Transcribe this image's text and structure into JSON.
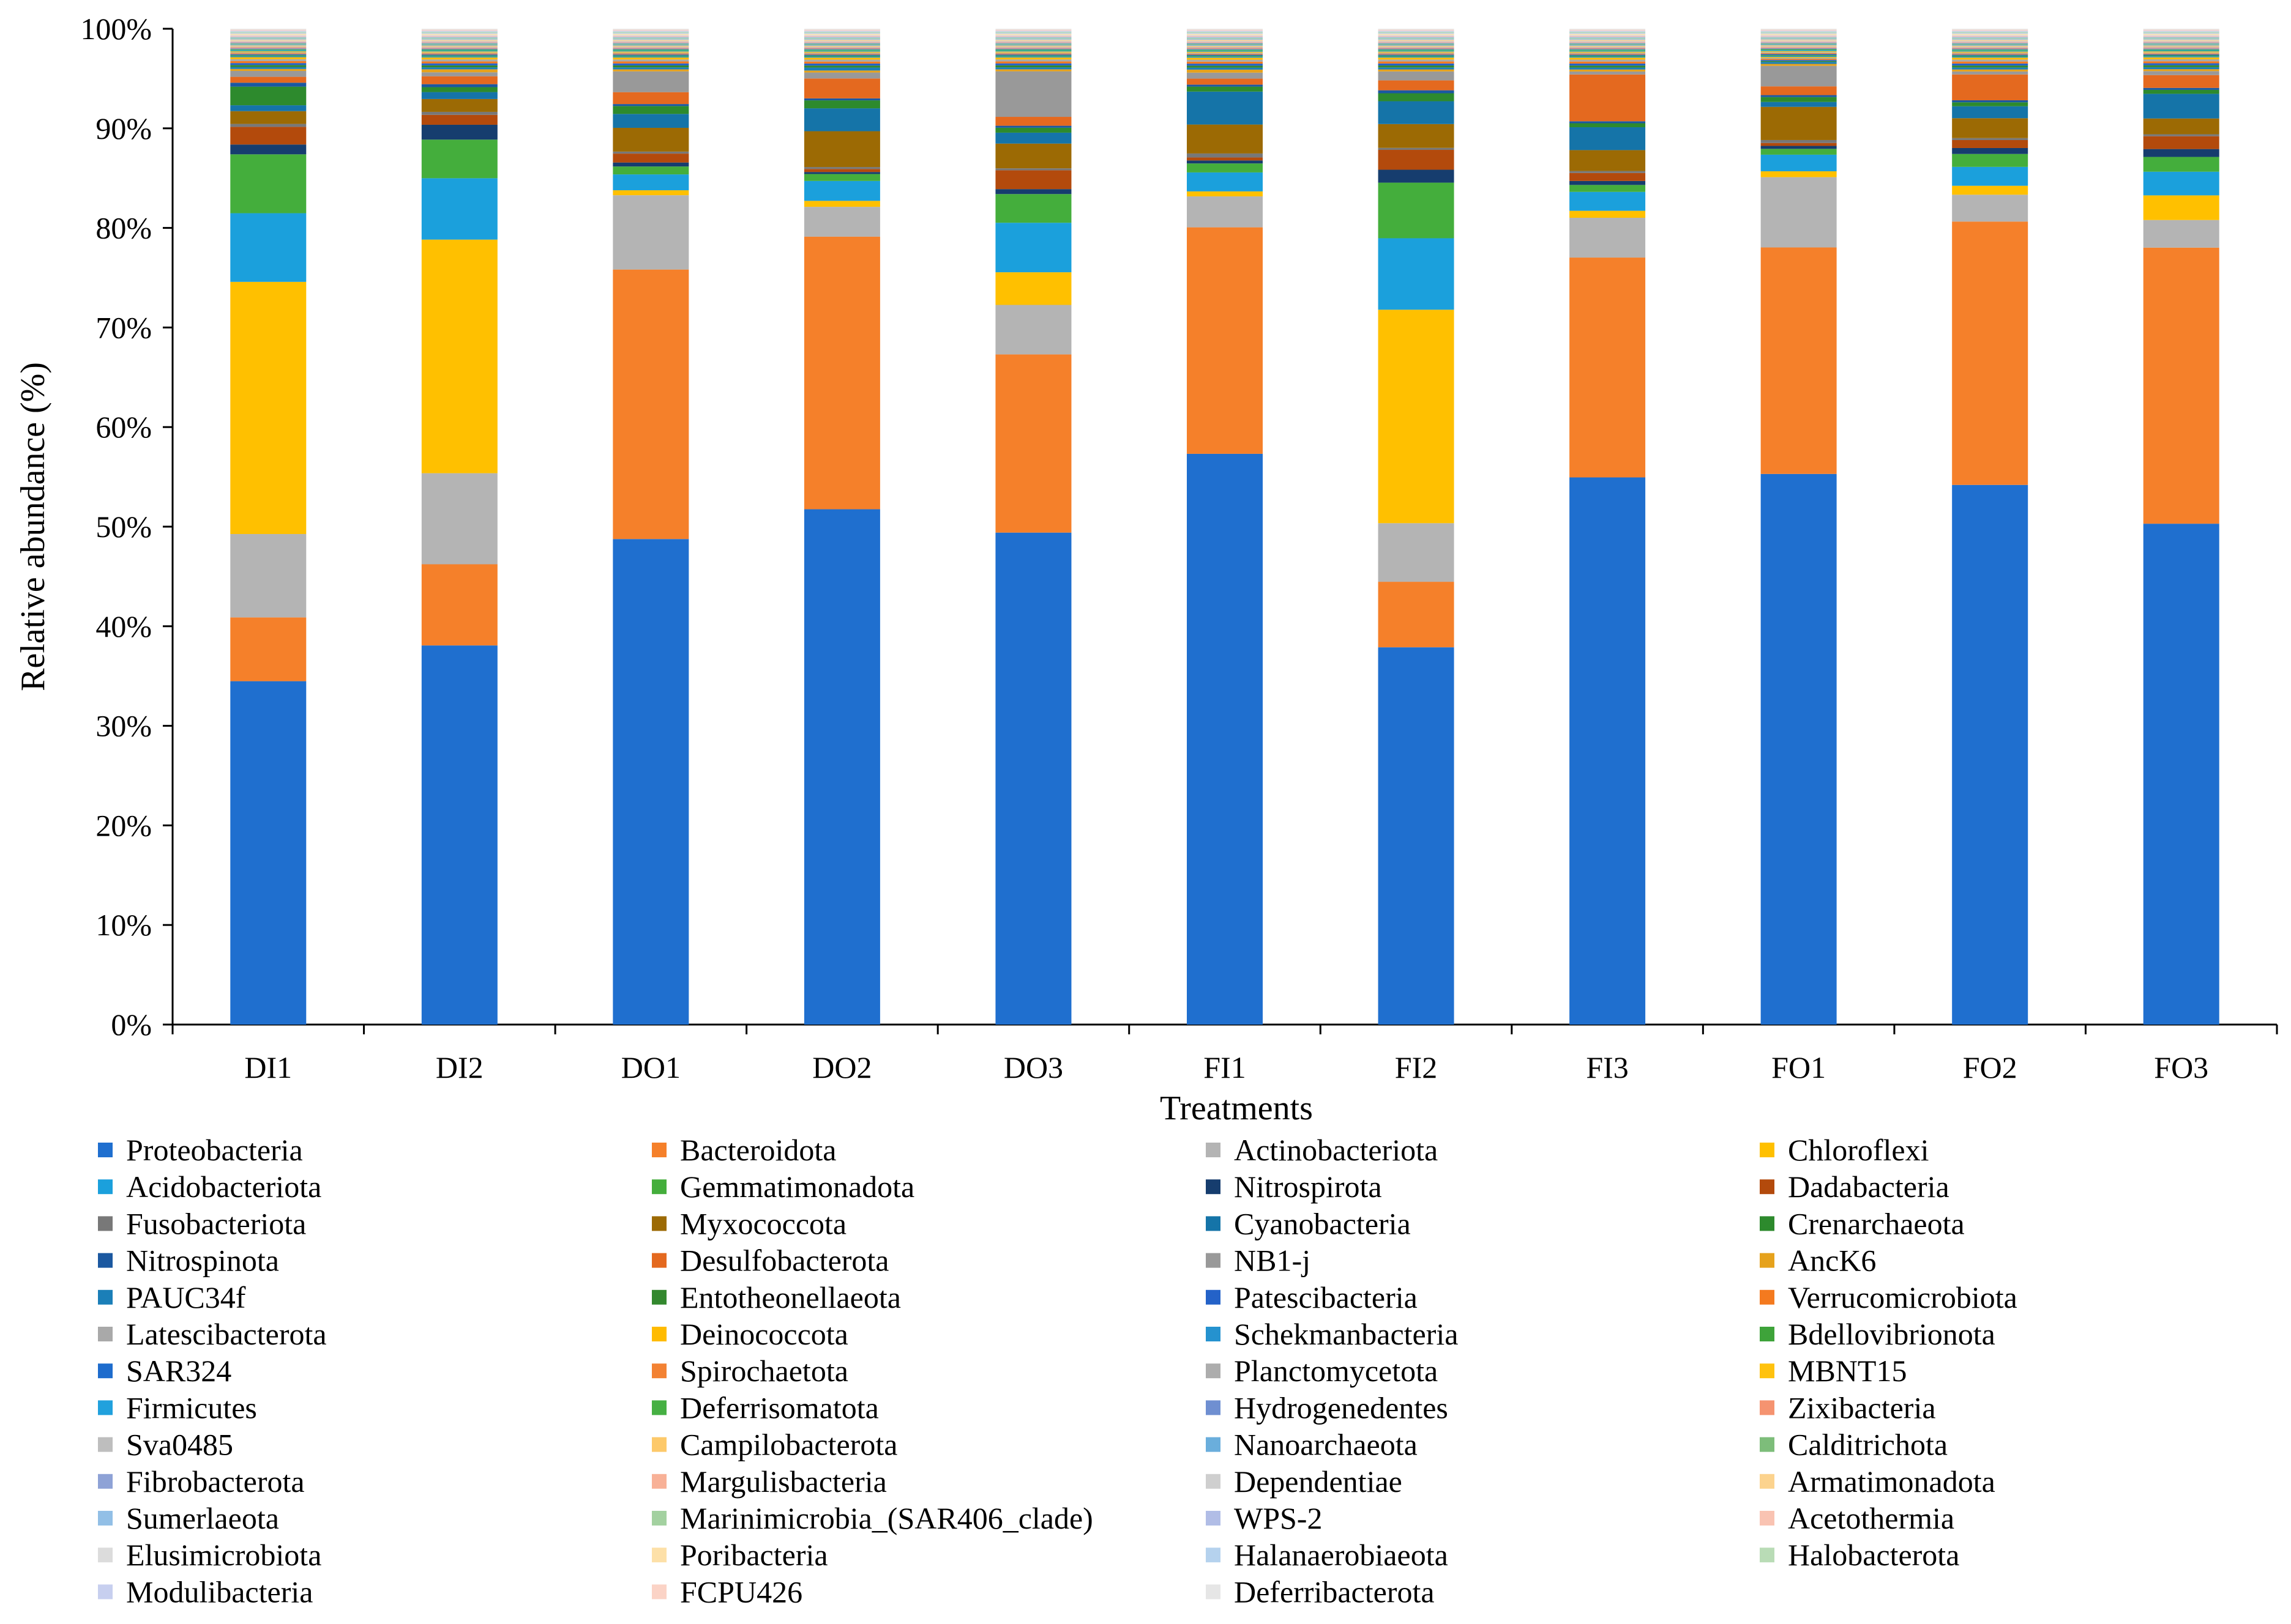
{
  "chart_data": {
    "type": "bar",
    "stacked": true,
    "title": "",
    "xlabel": "Treatments",
    "ylabel": "Relative abundance (%)",
    "ylim": [
      0,
      100
    ],
    "yticks": [
      "0%",
      "10%",
      "20%",
      "30%",
      "40%",
      "50%",
      "60%",
      "70%",
      "80%",
      "90%",
      "100%"
    ],
    "categories": [
      "DI1",
      "DI2",
      "DO1",
      "DO2",
      "DO3",
      "FI1",
      "FI2",
      "FI3",
      "FO1",
      "FO2",
      "FO3"
    ],
    "legend_position": "bottom",
    "series": [
      {
        "name": "Proteobacteria",
        "color": "#1f6fcf",
        "values": [
          35.0,
          38.3,
          49.0,
          51.8,
          49.7,
          57.2,
          38.0,
          55.0,
          56.4,
          54.3,
          50.8
        ]
      },
      {
        "name": "Bacteroidota",
        "color": "#f5802a",
        "values": [
          6.5,
          8.2,
          27.2,
          27.4,
          18.0,
          22.7,
          6.6,
          22.1,
          23.2,
          26.5,
          28.0
        ]
      },
      {
        "name": "Actinobacteriota",
        "color": "#b4b4b4",
        "values": [
          8.5,
          9.2,
          7.5,
          3.0,
          5.0,
          3.1,
          5.9,
          4.0,
          7.2,
          2.7,
          2.8
        ]
      },
      {
        "name": "Chloroflexi",
        "color": "#ffc000",
        "values": [
          25.7,
          23.6,
          0.5,
          0.6,
          3.3,
          0.5,
          21.5,
          0.7,
          0.6,
          0.9,
          2.5
        ]
      },
      {
        "name": "Acidobacteriota",
        "color": "#1ba0dc",
        "values": [
          7.0,
          6.2,
          1.6,
          2.0,
          5.0,
          1.9,
          7.2,
          1.9,
          1.7,
          1.9,
          2.4
        ]
      },
      {
        "name": "Gemmatimonadota",
        "color": "#44ae3c",
        "values": [
          6.0,
          3.9,
          0.8,
          0.7,
          2.9,
          0.9,
          5.6,
          0.7,
          0.6,
          1.3,
          1.5
        ]
      },
      {
        "name": "Nitrospirota",
        "color": "#163d6e",
        "values": [
          1.0,
          1.5,
          0.4,
          0.2,
          0.5,
          0.3,
          1.3,
          0.4,
          0.3,
          0.6,
          0.8
        ]
      },
      {
        "name": "Dadabacteria",
        "color": "#b34a0c",
        "values": [
          1.8,
          1.0,
          0.9,
          0.3,
          1.9,
          0.3,
          2.0,
          0.8,
          0.3,
          0.8,
          1.3
        ]
      },
      {
        "name": "Fusobacteriota",
        "color": "#787878",
        "values": [
          0.3,
          0.3,
          0.2,
          0.2,
          0.2,
          0.4,
          0.2,
          0.2,
          0.3,
          0.2,
          0.2
        ]
      },
      {
        "name": "Myxococcota",
        "color": "#9c6a04",
        "values": [
          1.3,
          1.3,
          2.4,
          3.6,
          2.5,
          2.9,
          2.4,
          2.1,
          3.4,
          2.0,
          1.6
        ]
      },
      {
        "name": "Cyanobacteria",
        "color": "#1574a8",
        "values": [
          0.6,
          0.7,
          1.4,
          2.3,
          1.1,
          3.3,
          2.3,
          2.3,
          0.5,
          1.2,
          2.5
        ]
      },
      {
        "name": "Crenarchaeota",
        "color": "#2d8a2d",
        "values": [
          1.9,
          0.5,
          0.8,
          0.8,
          0.5,
          0.5,
          0.8,
          0.4,
          0.5,
          0.4,
          0.4
        ]
      },
      {
        "name": "Nitrospinota",
        "color": "#1b58a0",
        "values": [
          0.4,
          0.3,
          0.2,
          0.2,
          0.2,
          0.2,
          0.3,
          0.2,
          0.2,
          0.2,
          0.2
        ]
      },
      {
        "name": "Desulfobacterota",
        "color": "#e4691f",
        "values": [
          0.6,
          0.8,
          1.2,
          2.0,
          0.9,
          0.6,
          1.0,
          4.7,
          0.9,
          2.6,
          1.3
        ]
      },
      {
        "name": "NB1-j",
        "color": "#999999",
        "values": [
          0.6,
          0.4,
          2.1,
          0.6,
          4.6,
          0.6,
          0.9,
          0.3,
          2.1,
          0.3,
          0.4
        ]
      },
      {
        "name": "AncK6",
        "color": "#e6a21c",
        "values": [
          0.2,
          0.3,
          0.2,
          0.2,
          0.2,
          0.3,
          0.2,
          0.2,
          0.2,
          0.2,
          0.2
        ]
      },
      {
        "name": "PAUC34f",
        "color": "#1b7fb8",
        "values": [
          0.2,
          0.2,
          0.2,
          0.3,
          0.2,
          0.2,
          0.2,
          0.2,
          0.2,
          0.2,
          0.2
        ]
      },
      {
        "name": "Entotheonellaeota",
        "color": "#33882e",
        "values": [
          0.2,
          0.2,
          0.2,
          0.2,
          0.2,
          0.2,
          0.2,
          0.2,
          0.1,
          0.2,
          0.2
        ]
      },
      {
        "name": "Patescibacteria",
        "color": "#2462c8",
        "values": [
          0.2,
          0.2,
          0.2,
          0.2,
          0.2,
          0.2,
          0.2,
          0.2,
          0.1,
          0.2,
          0.2
        ]
      },
      {
        "name": "Verrucomicrobiota",
        "color": "#f47a1f",
        "values": [
          0.2,
          0.2,
          0.2,
          0.2,
          0.2,
          0.2,
          0.2,
          0.2,
          0.1,
          0.2,
          0.2
        ]
      },
      {
        "name": "Latescibacterota",
        "color": "#a9a9a9",
        "values": [
          0.2,
          0.2,
          0.2,
          0.2,
          0.2,
          0.2,
          0.2,
          0.2,
          0.1,
          0.2,
          0.2
        ]
      },
      {
        "name": "Deinococcota",
        "color": "#ffbb00",
        "values": [
          0.2,
          0.2,
          0.2,
          0.2,
          0.2,
          0.2,
          0.2,
          0.2,
          0.1,
          0.2,
          0.2
        ]
      },
      {
        "name": "Schekmanbacteria",
        "color": "#2592cf",
        "values": [
          0.1,
          0.1,
          0.1,
          0.1,
          0.1,
          0.1,
          0.1,
          0.1,
          0.1,
          0.1,
          0.1
        ]
      },
      {
        "name": "Bdellovibrionota",
        "color": "#3ea33a",
        "values": [
          0.1,
          0.1,
          0.1,
          0.1,
          0.1,
          0.1,
          0.1,
          0.1,
          0.1,
          0.1,
          0.1
        ]
      },
      {
        "name": "SAR324",
        "color": "#1e6ccd",
        "values": [
          0.1,
          0.1,
          0.1,
          0.1,
          0.1,
          0.1,
          0.1,
          0.1,
          0.1,
          0.1,
          0.1
        ]
      },
      {
        "name": "Spirochaetota",
        "color": "#f38233",
        "values": [
          0.1,
          0.1,
          0.1,
          0.1,
          0.1,
          0.1,
          0.1,
          0.1,
          0.1,
          0.1,
          0.1
        ]
      },
      {
        "name": "Planctomycetota",
        "color": "#adadad",
        "values": [
          0.1,
          0.1,
          0.1,
          0.1,
          0.1,
          0.1,
          0.1,
          0.1,
          0.1,
          0.1,
          0.1
        ]
      },
      {
        "name": "MBNT15",
        "color": "#ffc20e",
        "values": [
          0.1,
          0.1,
          0.1,
          0.1,
          0.1,
          0.1,
          0.1,
          0.1,
          0.1,
          0.1,
          0.1
        ]
      },
      {
        "name": "Firmicutes",
        "color": "#21a1dd",
        "values": [
          0.1,
          0.1,
          0.1,
          0.1,
          0.1,
          0.1,
          0.1,
          0.1,
          0.1,
          0.1,
          0.1
        ]
      },
      {
        "name": "Deferrisomatota",
        "color": "#46b043",
        "values": [
          0.1,
          0.1,
          0.1,
          0.1,
          0.1,
          0.1,
          0.1,
          0.1,
          0.1,
          0.1,
          0.1
        ]
      },
      {
        "name": "Hydrogenedentes",
        "color": "#6f8fd1",
        "values": [
          0.1,
          0.1,
          0.1,
          0.1,
          0.1,
          0.1,
          0.1,
          0.1,
          0.1,
          0.1,
          0.1
        ]
      },
      {
        "name": "Zixibacteria",
        "color": "#f59370",
        "values": [
          0.1,
          0.1,
          0.1,
          0.1,
          0.1,
          0.1,
          0.1,
          0.1,
          0.1,
          0.1,
          0.1
        ]
      },
      {
        "name": "Sva0485",
        "color": "#bebebe",
        "values": [
          0.1,
          0.1,
          0.1,
          0.1,
          0.1,
          0.1,
          0.1,
          0.1,
          0.1,
          0.1,
          0.1
        ]
      },
      {
        "name": "Campilobacterota",
        "color": "#fdc96a",
        "values": [
          0.1,
          0.1,
          0.1,
          0.1,
          0.1,
          0.1,
          0.1,
          0.1,
          0.1,
          0.1,
          0.1
        ]
      },
      {
        "name": "Nanoarchaeota",
        "color": "#6aaedc",
        "values": [
          0.1,
          0.1,
          0.1,
          0.1,
          0.1,
          0.1,
          0.1,
          0.1,
          0.1,
          0.1,
          0.1
        ]
      },
      {
        "name": "Calditrichota",
        "color": "#7dbd7a",
        "values": [
          0.1,
          0.1,
          0.1,
          0.1,
          0.1,
          0.1,
          0.1,
          0.1,
          0.1,
          0.1,
          0.1
        ]
      },
      {
        "name": "Fibrobacterota",
        "color": "#8ea2d6",
        "values": [
          0.1,
          0.1,
          0.1,
          0.1,
          0.1,
          0.1,
          0.1,
          0.1,
          0.1,
          0.1,
          0.1
        ]
      },
      {
        "name": "Margulisbacteria",
        "color": "#f8b197",
        "values": [
          0.1,
          0.1,
          0.1,
          0.1,
          0.1,
          0.1,
          0.1,
          0.1,
          0.1,
          0.1,
          0.1
        ]
      },
      {
        "name": "Dependentiae",
        "color": "#cfcfcf",
        "values": [
          0.1,
          0.1,
          0.1,
          0.1,
          0.1,
          0.1,
          0.1,
          0.1,
          0.1,
          0.1,
          0.1
        ]
      },
      {
        "name": "Armatimonadota",
        "color": "#fcd38e",
        "values": [
          0.1,
          0.1,
          0.1,
          0.1,
          0.1,
          0.1,
          0.1,
          0.1,
          0.1,
          0.1,
          0.1
        ]
      },
      {
        "name": "Sumerlaeota",
        "color": "#92bfe6",
        "values": [
          0.1,
          0.1,
          0.1,
          0.1,
          0.1,
          0.1,
          0.1,
          0.1,
          0.1,
          0.1,
          0.1
        ]
      },
      {
        "name": "Marinimicrobia_(SAR406_clade)",
        "color": "#a3d1a0",
        "values": [
          0.1,
          0.1,
          0.1,
          0.1,
          0.1,
          0.1,
          0.1,
          0.1,
          0.1,
          0.1,
          0.1
        ]
      },
      {
        "name": "WPS-2",
        "color": "#b1bde6",
        "values": [
          0.1,
          0.1,
          0.1,
          0.1,
          0.1,
          0.1,
          0.1,
          0.1,
          0.1,
          0.1,
          0.1
        ]
      },
      {
        "name": "Acetothermia",
        "color": "#f9c3b2",
        "values": [
          0.1,
          0.1,
          0.1,
          0.1,
          0.1,
          0.1,
          0.1,
          0.1,
          0.1,
          0.1,
          0.1
        ]
      },
      {
        "name": "Elusimicrobiota",
        "color": "#dcdcdc",
        "values": [
          0.1,
          0.1,
          0.1,
          0.1,
          0.1,
          0.1,
          0.1,
          0.1,
          0.1,
          0.1,
          0.1
        ]
      },
      {
        "name": "Poribacteria",
        "color": "#fde0a8",
        "values": [
          0.1,
          0.1,
          0.1,
          0.1,
          0.1,
          0.1,
          0.1,
          0.1,
          0.1,
          0.1,
          0.1
        ]
      },
      {
        "name": "Halanaerobiaeota",
        "color": "#b5d2ee",
        "values": [
          0.1,
          0.1,
          0.1,
          0.1,
          0.1,
          0.1,
          0.1,
          0.1,
          0.1,
          0.1,
          0.1
        ]
      },
      {
        "name": "Halobacterota",
        "color": "#b9dcb6",
        "values": [
          0.1,
          0.1,
          0.1,
          0.1,
          0.1,
          0.1,
          0.1,
          0.1,
          0.1,
          0.1,
          0.1
        ]
      },
      {
        "name": "Modulibacteria",
        "color": "#c7cfef",
        "values": [
          0.1,
          0.1,
          0.1,
          0.1,
          0.1,
          0.1,
          0.1,
          0.1,
          0.1,
          0.1,
          0.1
        ]
      },
      {
        "name": "FCPU426",
        "color": "#fbd3c6",
        "values": [
          0.1,
          0.1,
          0.1,
          0.1,
          0.1,
          0.1,
          0.1,
          0.1,
          0.1,
          0.1,
          0.1
        ]
      },
      {
        "name": "Deferribacterota",
        "color": "#e6e6e6",
        "values": [
          0.1,
          0.1,
          0.1,
          0.1,
          0.1,
          0.1,
          0.1,
          0.1,
          0.1,
          0.1,
          0.1
        ]
      }
    ]
  }
}
